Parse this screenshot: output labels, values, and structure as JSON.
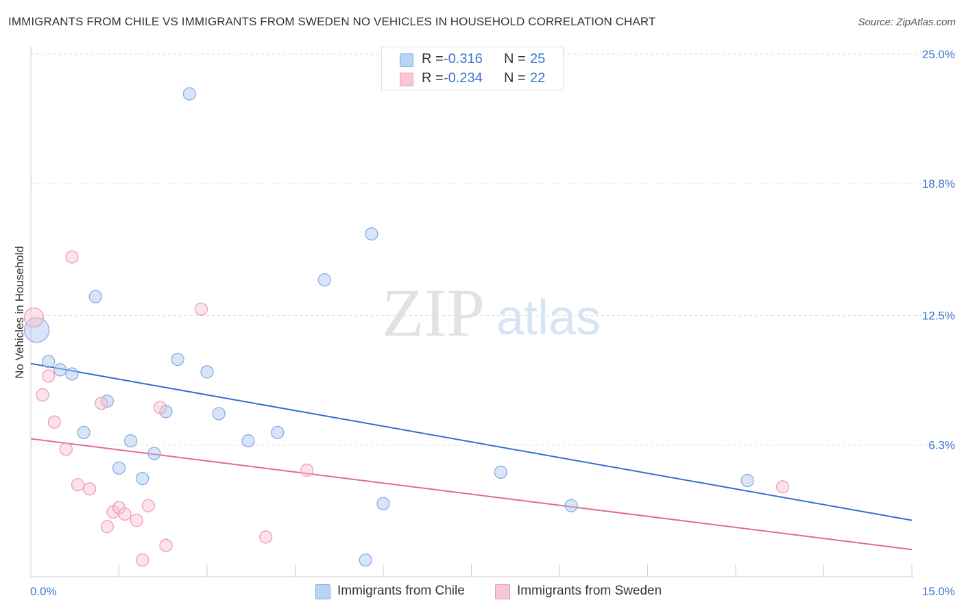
{
  "title": "IMMIGRANTS FROM CHILE VS IMMIGRANTS FROM SWEDEN NO VEHICLES IN HOUSEHOLD CORRELATION CHART",
  "source": "Source: ZipAtlas.com",
  "watermark": {
    "zip": "ZIP",
    "atlas": "atlas"
  },
  "legend": {
    "series": [
      {
        "r_label": "R =",
        "r_value": "-0.316",
        "n_label": "N =",
        "n_value": "25",
        "swatch_fill": "#b8d3f5",
        "swatch_stroke": "#7fa8e0"
      },
      {
        "r_label": "R =",
        "r_value": "-0.234",
        "n_label": "N =",
        "n_value": "22",
        "swatch_fill": "#f9c6d4",
        "swatch_stroke": "#ee97b0"
      }
    ]
  },
  "bottom_legend": {
    "chile": "Immigrants from Chile",
    "sweden": "Immigrants from Sweden"
  },
  "colors": {
    "chile_fill": "rgba(168,198,240,0.45)",
    "chile_stroke": "#7fa8e0",
    "chile_line": "#2f6fd0",
    "sweden_fill": "rgba(249,190,208,0.45)",
    "sweden_stroke": "#ee97b0",
    "sweden_line": "#e06a93",
    "axis_label": "#3a76d0",
    "grid": "#dddddd"
  },
  "chart_data": {
    "type": "scatter",
    "xlabel": "",
    "ylabel": "No Vehicles in Household",
    "xlim": [
      0,
      15
    ],
    "ylim": [
      0,
      25
    ],
    "x_tick_labels": [
      "0.0%",
      "15.0%"
    ],
    "y_tick_labels": [
      "6.3%",
      "12.5%",
      "18.8%",
      "25.0%"
    ],
    "y_tick_values": [
      6.3,
      12.5,
      18.8,
      25.0
    ],
    "grid": true,
    "legend_position": "top-center",
    "series": [
      {
        "name": "Immigrants from Chile",
        "points": [
          [
            0.1,
            11.8,
            18
          ],
          [
            0.3,
            10.3,
            9
          ],
          [
            0.5,
            9.9,
            9
          ],
          [
            0.7,
            9.7,
            9
          ],
          [
            1.1,
            13.4,
            9
          ],
          [
            1.3,
            8.4,
            9
          ],
          [
            0.9,
            6.9,
            9
          ],
          [
            1.7,
            6.5,
            9
          ],
          [
            1.5,
            5.2,
            9
          ],
          [
            1.9,
            4.7,
            9
          ],
          [
            2.1,
            5.9,
            9
          ],
          [
            2.3,
            7.9,
            9
          ],
          [
            2.5,
            10.4,
            9
          ],
          [
            2.7,
            23.1,
            9
          ],
          [
            3.0,
            9.8,
            9
          ],
          [
            3.2,
            7.8,
            9
          ],
          [
            3.7,
            6.5,
            9
          ],
          [
            4.2,
            6.9,
            9
          ],
          [
            5.0,
            14.2,
            9
          ],
          [
            5.7,
            0.8,
            9
          ],
          [
            5.8,
            16.4,
            9
          ],
          [
            6.0,
            3.5,
            9
          ],
          [
            8.0,
            5.0,
            9
          ],
          [
            9.2,
            3.4,
            9
          ],
          [
            12.2,
            4.6,
            9
          ]
        ],
        "trend": {
          "x": [
            0,
            15
          ],
          "y": [
            10.2,
            2.7
          ]
        }
      },
      {
        "name": "Immigrants from Sweden",
        "points": [
          [
            0.05,
            12.4,
            14
          ],
          [
            0.2,
            8.7,
            9
          ],
          [
            0.3,
            9.6,
            9
          ],
          [
            0.4,
            7.4,
            9
          ],
          [
            0.6,
            6.1,
            9
          ],
          [
            0.7,
            15.3,
            9
          ],
          [
            0.8,
            4.4,
            9
          ],
          [
            1.0,
            4.2,
            9
          ],
          [
            1.2,
            8.3,
            9
          ],
          [
            1.3,
            2.4,
            9
          ],
          [
            1.4,
            3.1,
            9
          ],
          [
            1.5,
            3.3,
            9
          ],
          [
            1.6,
            3.0,
            9
          ],
          [
            1.8,
            2.7,
            9
          ],
          [
            1.9,
            0.8,
            9
          ],
          [
            2.0,
            3.4,
            9
          ],
          [
            2.2,
            8.1,
            9
          ],
          [
            2.3,
            1.5,
            9
          ],
          [
            2.9,
            12.8,
            9
          ],
          [
            4.0,
            1.9,
            9
          ],
          [
            4.7,
            5.1,
            9
          ],
          [
            12.8,
            4.3,
            9
          ]
        ],
        "trend": {
          "x": [
            0,
            15
          ],
          "y": [
            6.6,
            1.3
          ]
        }
      }
    ]
  }
}
